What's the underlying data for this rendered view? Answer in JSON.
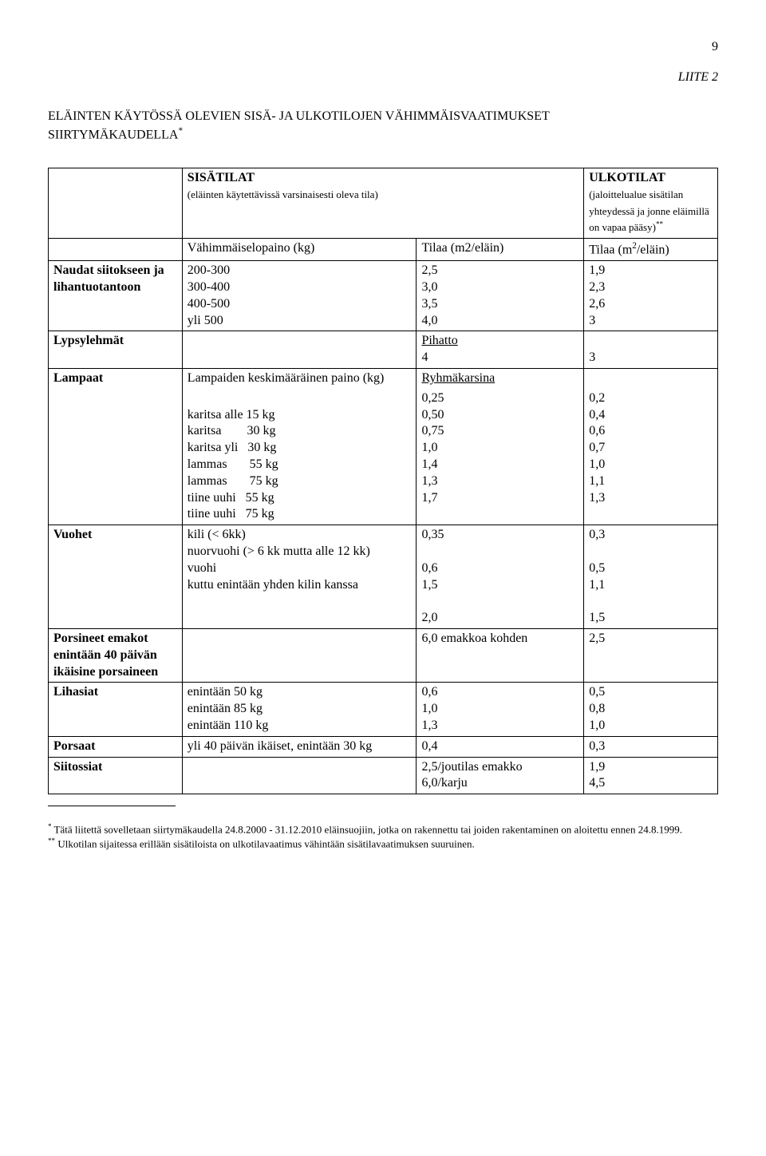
{
  "page_number": "9",
  "appendix": "LIITE 2",
  "title_line1": "ELÄINTEN KÄYTÖSSÄ OLEVIEN SISÄ- JA ULKOTILOJEN VÄHIMMÄISVAATIMUKSET",
  "title_line2": "SIIRTYMÄKAUDELLA",
  "title_sup": "*",
  "header": {
    "sisa_title": "SISÄTILAT",
    "sisa_sub": "(eläinten käytettävissä varsinaisesti oleva tila)",
    "ulko_title": "ULKOTILAT",
    "ulko_sub1": "(jaloittelualue sisätilan yhteydessä ja jonne eläimillä on vapaa pääsy)",
    "ulko_sup": "**",
    "vahimmais": "Vähimmäiselopaino (kg)",
    "tilaa_m2": "Tilaa (m2/eläin)",
    "tilaa_m2_sup_pre": "Tilaa (m",
    "tilaa_m2_sup_exp": "2",
    "tilaa_m2_sup_post": "/eläin)"
  },
  "rows": {
    "naudat": {
      "label": "Naudat siitokseen ja lihantuotantoon",
      "w": [
        "200-300",
        "300-400",
        "400-500",
        "yli 500"
      ],
      "a": [
        "2,5",
        "3,0",
        "3,5",
        "4,0"
      ],
      "u": [
        "1,9",
        "2,3",
        "2,6",
        "3"
      ]
    },
    "lypsy": {
      "label": "Lypsylehmät",
      "pihatto": "Pihatto",
      "a": " 4",
      "u": "3"
    },
    "lampaat": {
      "label": "Lampaat",
      "desc": "Lampaiden keskimääräinen paino (kg)",
      "ryhma": "Ryhmäkarsina",
      "items": [
        "karitsa alle 15 kg",
        "karitsa        30 kg",
        "karitsa yli   30 kg",
        "lammas       55 kg",
        "lammas       75 kg",
        "tiine uuhi   55 kg",
        "tiine uuhi   75 kg"
      ],
      "a": [
        "0,25",
        "0,50",
        "0,75",
        "1,0",
        "1,4",
        "1,3",
        "1,7"
      ],
      "u": [
        "0,2",
        "0,4",
        "0,6",
        "0,7",
        "1,0",
        "1,1",
        "1,3"
      ]
    },
    "vuohet": {
      "label": "Vuohet",
      "items": [
        "kili  (< 6kk)",
        "nuorvuohi (> 6 kk mutta alle 12 kk)",
        "vuohi",
        "kuttu enintään yhden kilin kanssa"
      ],
      "a": [
        "0,35",
        "0,6",
        "1,5",
        "2,0"
      ],
      "u": [
        "0,3",
        "0,5",
        "1,1",
        "1,5"
      ]
    },
    "porsineet": {
      "label": "Porsineet emakot enintään 40 päivän ikäisine porsaineen",
      "a": "6,0 emakkoa kohden",
      "u": "2,5"
    },
    "lihasiat": {
      "label": "Lihasiat",
      "items": [
        "enintään 50 kg",
        "enintään 85 kg",
        "enintään 110 kg"
      ],
      "a": [
        "0,6",
        "1,0",
        "1,3"
      ],
      "u": [
        "0,5",
        "0,8",
        "1,0"
      ]
    },
    "porsaat": {
      "label": "Porsaat",
      "desc": "yli 40 päivän ikäiset, enintään 30 kg",
      "a": "0,4",
      "u": "0,3"
    },
    "siitossiat": {
      "label": "Siitossiat",
      "a": [
        "2,5/joutilas emakko",
        "6,0/karju"
      ],
      "u": [
        "1,9",
        "4,5"
      ]
    }
  },
  "footnotes": {
    "f1_sup": "*",
    "f1": " Tätä liitettä sovelletaan siirtymäkaudella 24.8.2000 - 31.12.2010 eläinsuojiin, jotka on rakennettu tai joiden rakentaminen on aloitettu ennen 24.8.1999.",
    "f2_sup": "**",
    "f2": " Ulkotilan sijaitessa erillään sisätiloista on ulkotilavaatimus vähintään sisätilavaatimuksen suuruinen."
  }
}
